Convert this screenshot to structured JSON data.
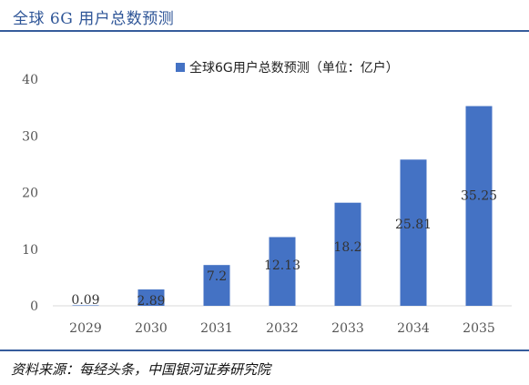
{
  "header": {
    "title": "全球 6G 用户总数预测"
  },
  "source": {
    "text": "资料来源：每经头条，中国银河证券研究院"
  },
  "colors": {
    "bar": "#4472c4",
    "rule": "#365c9c",
    "title": "#2e5597"
  },
  "chart_data": {
    "type": "bar",
    "title": "",
    "xlabel": "",
    "ylabel": "",
    "categories": [
      "2029",
      "2030",
      "2031",
      "2032",
      "2033",
      "2034",
      "2035"
    ],
    "series": [
      {
        "name": "全球6G用户总数预测（单位：亿户）",
        "values": [
          0.09,
          2.89,
          7.2,
          12.13,
          18.2,
          25.81,
          35.25
        ],
        "labels": [
          "0.09",
          "2.89",
          "7.2",
          "12.13",
          "18.2",
          "25.81",
          "35.25"
        ]
      }
    ],
    "ylim": [
      0,
      40
    ],
    "yticks": [
      "0",
      "10",
      "20",
      "30",
      "40"
    ],
    "grid": false,
    "legend_position": "top"
  }
}
